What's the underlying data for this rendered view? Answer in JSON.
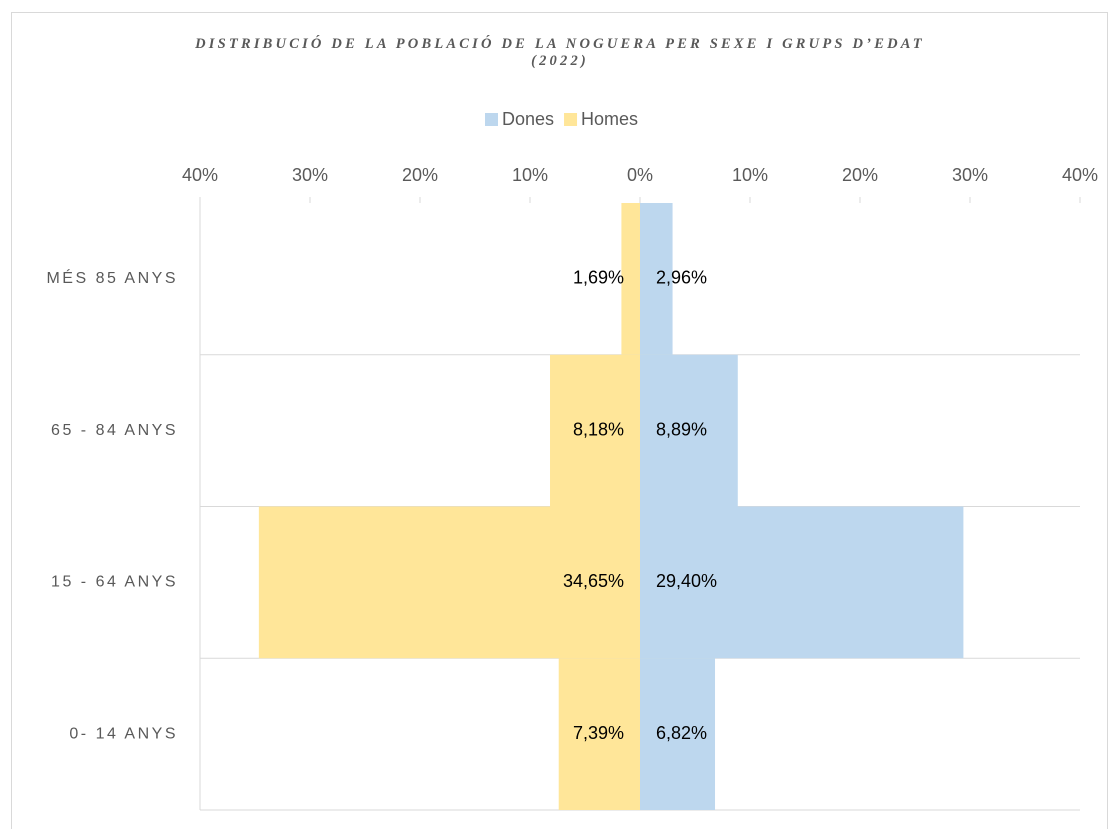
{
  "chart_data": {
    "type": "pyramid",
    "title": "DISTRIBUCIÓ DE LA POBLACIÓ DE LA NOGUERA PER SEXE I GRUPS D’EDAT (2022)",
    "categories": [
      "MÉS 85 ANYS",
      "65 - 84 ANYS",
      "15 - 64 ANYS",
      "0- 14 ANYS"
    ],
    "series": [
      {
        "name": "Dones",
        "color": "#bdd7ee",
        "side": "right",
        "values": [
          2.96,
          8.89,
          29.4,
          6.82
        ],
        "value_labels": [
          "2,96%",
          "8,89%",
          "29,40%",
          "6,82%"
        ]
      },
      {
        "name": "Homes",
        "color": "#ffe699",
        "side": "left",
        "values": [
          1.69,
          8.18,
          34.65,
          7.39
        ],
        "value_labels": [
          "1,69%",
          "8,18%",
          "34,65%",
          "7,39%"
        ]
      }
    ],
    "xlim": [
      -40,
      40
    ],
    "xticks": [
      {
        "value": -40,
        "label": "40%"
      },
      {
        "value": -30,
        "label": "30%"
      },
      {
        "value": -20,
        "label": "20%"
      },
      {
        "value": -10,
        "label": "10%"
      },
      {
        "value": 0,
        "label": "0%"
      },
      {
        "value": 10,
        "label": "10%"
      },
      {
        "value": 20,
        "label": "20%"
      },
      {
        "value": 30,
        "label": "30%"
      },
      {
        "value": 40,
        "label": "40%"
      }
    ],
    "legend": "top"
  }
}
